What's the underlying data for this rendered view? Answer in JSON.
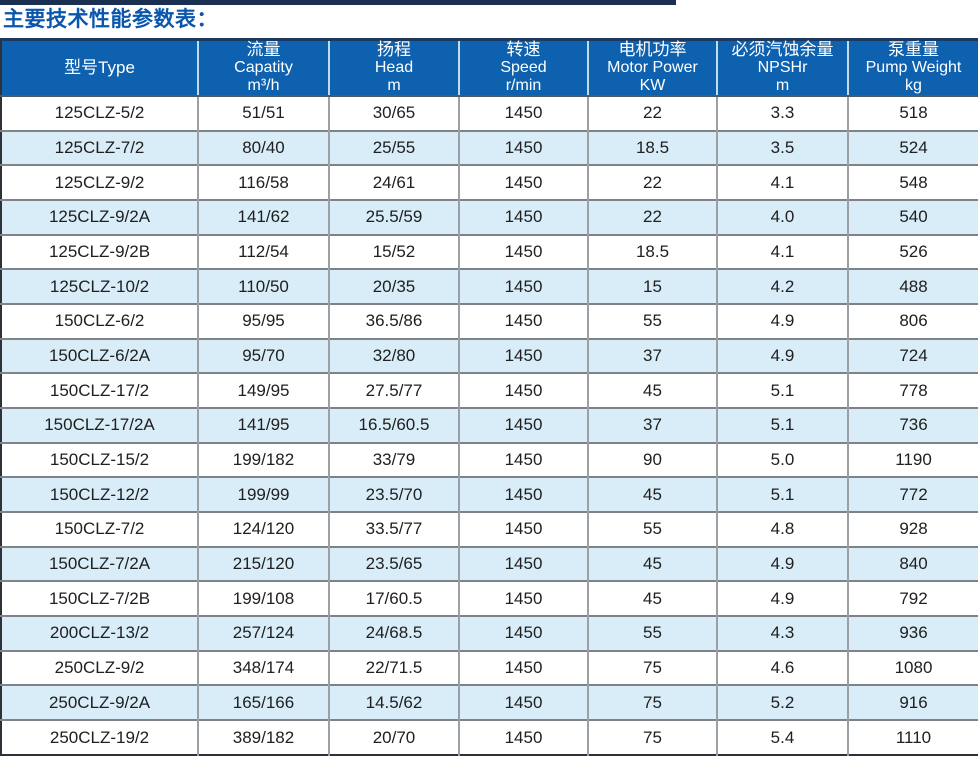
{
  "page": {
    "title": "主要技术性能参数表："
  },
  "colors": {
    "title_blue": "#0a56ad",
    "header_bg": "#0e61ae",
    "row_alt_bg": "#d9edf8",
    "grid_line": "#7d8388",
    "outer_border": "#2d3238"
  },
  "table": {
    "columns": [
      {
        "id": "model",
        "lines": [
          "型号Type"
        ]
      },
      {
        "id": "capacity",
        "lines": [
          "流量",
          "Capatity",
          "m³/h"
        ]
      },
      {
        "id": "head",
        "lines": [
          "扬程",
          "Head",
          "m"
        ]
      },
      {
        "id": "speed",
        "lines": [
          "转速",
          "Speed",
          "r/min"
        ]
      },
      {
        "id": "power",
        "lines": [
          "电机功率",
          "Motor Power",
          "KW"
        ]
      },
      {
        "id": "npshr",
        "lines": [
          "必须汽蚀余量",
          "NPSHr",
          "m"
        ]
      },
      {
        "id": "weight",
        "lines": [
          "泵重量",
          "Pump Weight",
          "kg"
        ]
      }
    ],
    "rows": [
      [
        "125CLZ-5/2",
        "51/51",
        "30/65",
        "1450",
        "22",
        "3.3",
        "518"
      ],
      [
        "125CLZ-7/2",
        "80/40",
        "25/55",
        "1450",
        "18.5",
        "3.5",
        "524"
      ],
      [
        "125CLZ-9/2",
        "116/58",
        "24/61",
        "1450",
        "22",
        "4.1",
        "548"
      ],
      [
        "125CLZ-9/2A",
        "141/62",
        "25.5/59",
        "1450",
        "22",
        "4.0",
        "540"
      ],
      [
        "125CLZ-9/2B",
        "112/54",
        "15/52",
        "1450",
        "18.5",
        "4.1",
        "526"
      ],
      [
        "125CLZ-10/2",
        "110/50",
        "20/35",
        "1450",
        "15",
        "4.2",
        "488"
      ],
      [
        "150CLZ-6/2",
        "95/95",
        "36.5/86",
        "1450",
        "55",
        "4.9",
        "806"
      ],
      [
        "150CLZ-6/2A",
        "95/70",
        "32/80",
        "1450",
        "37",
        "4.9",
        "724"
      ],
      [
        "150CLZ-17/2",
        "149/95",
        "27.5/77",
        "1450",
        "45",
        "5.1",
        "778"
      ],
      [
        "150CLZ-17/2A",
        "141/95",
        "16.5/60.5",
        "1450",
        "37",
        "5.1",
        "736"
      ],
      [
        "150CLZ-15/2",
        "199/182",
        "33/79",
        "1450",
        "90",
        "5.0",
        "1190"
      ],
      [
        "150CLZ-12/2",
        "199/99",
        "23.5/70",
        "1450",
        "45",
        "5.1",
        "772"
      ],
      [
        "150CLZ-7/2",
        "124/120",
        "33.5/77",
        "1450",
        "55",
        "4.8",
        "928"
      ],
      [
        "150CLZ-7/2A",
        "215/120",
        "23.5/65",
        "1450",
        "45",
        "4.9",
        "840"
      ],
      [
        "150CLZ-7/2B",
        "199/108",
        "17/60.5",
        "1450",
        "45",
        "4.9",
        "792"
      ],
      [
        "200CLZ-13/2",
        "257/124",
        "24/68.5",
        "1450",
        "55",
        "4.3",
        "936"
      ],
      [
        "250CLZ-9/2",
        "348/174",
        "22/71.5",
        "1450",
        "75",
        "4.6",
        "1080"
      ],
      [
        "250CLZ-9/2A",
        "165/166",
        "14.5/62",
        "1450",
        "75",
        "5.2",
        "916"
      ],
      [
        "250CLZ-19/2",
        "389/182",
        "20/70",
        "1450",
        "75",
        "5.4",
        "1110"
      ]
    ]
  }
}
